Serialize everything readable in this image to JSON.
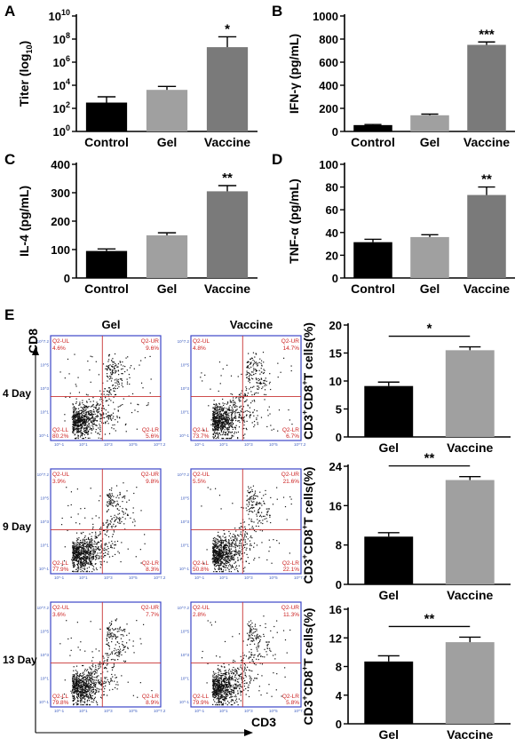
{
  "colors": {
    "control": "#000000",
    "gel": "#a0a0a0",
    "vaccine": "#7a7a7a",
    "flow_border": "#3c46c8",
    "quadrant_line": "#c83232",
    "flow_text": "#cc2222"
  },
  "chart_data": [
    {
      "panel": "A",
      "type": "bar",
      "categories": [
        "Control",
        "Gel",
        "Vaccine"
      ],
      "values": [
        2.5,
        3.6,
        7.3
      ],
      "errors": [
        0.5,
        0.3,
        0.9
      ],
      "yscale": "log",
      "ylabel_parts": [
        "Titer (log",
        "10",
        ")"
      ],
      "ylim": [
        0,
        10
      ],
      "yticks": [
        0,
        2,
        4,
        6,
        8,
        10
      ],
      "significance": [
        "",
        "",
        "*"
      ],
      "grid": false
    },
    {
      "panel": "B",
      "type": "bar",
      "categories": [
        "Control",
        "Gel",
        "Vaccine"
      ],
      "values": [
        55,
        140,
        750
      ],
      "errors": [
        5,
        10,
        25
      ],
      "ylabel": "IFN-γ (pg/mL)",
      "ylim": [
        0,
        1000
      ],
      "yticks": [
        0,
        200,
        400,
        600,
        800,
        1000
      ],
      "significance": [
        "",
        "",
        "***"
      ],
      "grid": false
    },
    {
      "panel": "C",
      "type": "bar",
      "categories": [
        "Control",
        "Gel",
        "Vaccine"
      ],
      "values": [
        95,
        150,
        305
      ],
      "errors": [
        7,
        9,
        20
      ],
      "ylabel": "IL-4 (pg/mL)",
      "ylim": [
        0,
        400
      ],
      "yticks": [
        0,
        100,
        200,
        300,
        400
      ],
      "significance": [
        "",
        "",
        "**"
      ],
      "grid": false
    },
    {
      "panel": "D",
      "type": "bar",
      "categories": [
        "Control",
        "Gel",
        "Vaccine"
      ],
      "values": [
        31.5,
        36,
        73
      ],
      "errors": [
        2.5,
        2,
        7
      ],
      "ylabel": "TNF-α (pg/mL)",
      "ylim": [
        0,
        100
      ],
      "yticks": [
        0,
        20,
        40,
        60,
        80,
        100
      ],
      "significance": [
        "",
        "",
        "**"
      ],
      "grid": false
    },
    {
      "panel": "E-4 Day",
      "type": "bar",
      "categories": [
        "Gel",
        "Vaccine"
      ],
      "values": [
        9.1,
        15.5
      ],
      "errors": [
        0.7,
        0.6
      ],
      "ylabel_parts": [
        "CD3",
        "+",
        "CD8",
        "+",
        "T cells(%)"
      ],
      "ylim": [
        0,
        20
      ],
      "yticks": [
        0,
        5,
        10,
        15,
        20
      ],
      "significance_bracket": "*",
      "grid": false
    },
    {
      "panel": "E-9 Day",
      "type": "bar",
      "categories": [
        "Gel",
        "Vaccine"
      ],
      "values": [
        9.7,
        21.2
      ],
      "errors": [
        0.8,
        0.7
      ],
      "ylabel_parts": [
        "CD3",
        "+",
        "CD8",
        "+",
        "T cells(%)"
      ],
      "ylim": [
        0,
        24
      ],
      "yticks": [
        0,
        8,
        16,
        24
      ],
      "significance_bracket": "**",
      "grid": false
    },
    {
      "panel": "E-13 Day",
      "type": "bar",
      "categories": [
        "Gel",
        "Vaccine"
      ],
      "values": [
        8.7,
        11.4
      ],
      "errors": [
        0.8,
        0.7
      ],
      "ylabel_parts": [
        "CD3",
        "+",
        "CD8",
        "+",
        "T cells(%)"
      ],
      "ylim": [
        0,
        16
      ],
      "yticks": [
        0,
        4,
        8,
        12,
        16
      ],
      "significance_bracket": "**",
      "grid": false
    }
  ],
  "flow": {
    "panel_letter": "E",
    "columns": [
      "Gel",
      "Vaccine"
    ],
    "rows": [
      "4 Day",
      "9 Day",
      "13 Day"
    ],
    "y_axis_label": "CD8",
    "x_axis_label": "CD3",
    "plots": [
      {
        "row": 0,
        "col": 0,
        "ul": "4.6%",
        "ur": "9.6%",
        "ll": "80.2%",
        "lr": "5.6%"
      },
      {
        "row": 0,
        "col": 1,
        "ul": "4.8%",
        "ur": "14.7%",
        "ll": "73.7%",
        "lr": "6.7%"
      },
      {
        "row": 1,
        "col": 0,
        "ul": "3.9%",
        "ur": "9.8%",
        "ll": "77.9%",
        "lr": "8.3%"
      },
      {
        "row": 1,
        "col": 1,
        "ul": "5.5%",
        "ur": "21.6%",
        "ll": "50.8%",
        "lr": "22.1%"
      },
      {
        "row": 2,
        "col": 0,
        "ul": "3.6%",
        "ur": "7.7%",
        "ll": "79.8%",
        "lr": "8.9%"
      },
      {
        "row": 2,
        "col": 1,
        "ul": "2.8%",
        "ur": "11.3%",
        "ll": "79.9%",
        "lr": "5.8%"
      }
    ],
    "quadrant_labels": {
      "ul": "Q2-UL",
      "ur": "Q2-UR",
      "ll": "Q2-LL",
      "lr": "Q2-LR"
    },
    "tick_labels": [
      "10^-1",
      "10^1",
      "10^3",
      "10^5",
      "10^7.2"
    ]
  }
}
